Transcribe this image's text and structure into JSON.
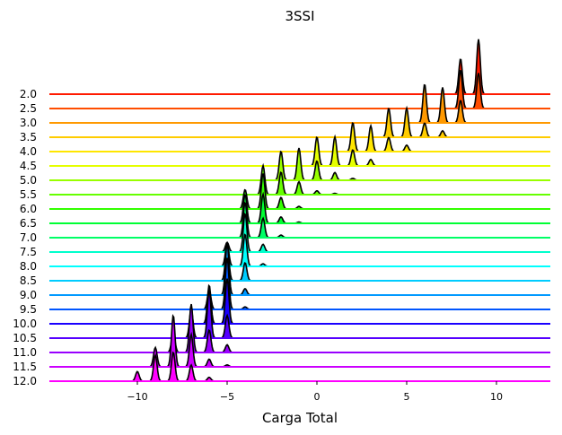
{
  "chart_data": {
    "type": "area",
    "subtype": "ridgeline",
    "title": "3SSI",
    "xlabel": "Carga Total",
    "ylabel": "",
    "xlim": [
      -14.9,
      13
    ],
    "x_ticks": [
      -10,
      -5,
      0,
      5,
      10
    ],
    "x_tick_labels": [
      "−10",
      "−5",
      "0",
      "5",
      "10"
    ],
    "grid": false,
    "legend": "none",
    "series": [
      {
        "label": "2.0",
        "color": "#ff1a00",
        "peaks": [
          [
            8,
            0.55
          ],
          [
            9,
            0.85
          ]
        ]
      },
      {
        "label": "2.5",
        "color": "#ff4d00",
        "peaks": [
          [
            8,
            0.6
          ],
          [
            9,
            0.55
          ]
        ]
      },
      {
        "label": "3.0",
        "color": "#ff9900",
        "peaks": [
          [
            6,
            0.6
          ],
          [
            7,
            0.55
          ],
          [
            8,
            0.35
          ]
        ]
      },
      {
        "label": "3.5",
        "color": "#ffcc00",
        "peaks": [
          [
            4,
            0.45
          ],
          [
            5,
            0.45
          ],
          [
            6,
            0.22
          ],
          [
            7,
            0.1
          ]
        ]
      },
      {
        "label": "4.0",
        "color": "#ffe600",
        "peaks": [
          [
            2,
            0.45
          ],
          [
            3,
            0.4
          ],
          [
            4,
            0.22
          ],
          [
            5,
            0.1
          ]
        ]
      },
      {
        "label": "4.5",
        "color": "#e5ff00",
        "peaks": [
          [
            0,
            0.45
          ],
          [
            1,
            0.45
          ],
          [
            2,
            0.25
          ],
          [
            3,
            0.1
          ]
        ]
      },
      {
        "label": "5.0",
        "color": "#99ff00",
        "peaks": [
          [
            -2,
            0.45
          ],
          [
            -1,
            0.5
          ],
          [
            0,
            0.3
          ],
          [
            1,
            0.12
          ],
          [
            2,
            0.03
          ]
        ]
      },
      {
        "label": "5.5",
        "color": "#66ff00",
        "peaks": [
          [
            -3,
            0.45
          ],
          [
            -2,
            0.35
          ],
          [
            -1,
            0.2
          ],
          [
            0,
            0.06
          ],
          [
            1,
            0.02
          ]
        ]
      },
      {
        "label": "6.0",
        "color": "#33ff00",
        "peaks": [
          [
            -4,
            0.3
          ],
          [
            -3,
            0.55
          ],
          [
            -2,
            0.18
          ],
          [
            -1,
            0.04
          ]
        ]
      },
      {
        "label": "6.5",
        "color": "#00ff33",
        "peaks": [
          [
            -4,
            0.45
          ],
          [
            -3,
            0.45
          ],
          [
            -2,
            0.1
          ],
          [
            -1,
            0.02
          ]
        ]
      },
      {
        "label": "7.0",
        "color": "#00ff66",
        "peaks": [
          [
            -4,
            0.55
          ],
          [
            -3,
            0.3
          ],
          [
            -2,
            0.04
          ]
        ]
      },
      {
        "label": "7.5",
        "color": "#00ffcc",
        "peaks": [
          [
            -5,
            0.15
          ],
          [
            -4,
            0.6
          ],
          [
            -3,
            0.12
          ]
        ]
      },
      {
        "label": "8.0",
        "color": "#00ffff",
        "peaks": [
          [
            -5,
            0.35
          ],
          [
            -4,
            0.5
          ],
          [
            -3,
            0.04
          ]
        ]
      },
      {
        "label": "8.5",
        "color": "#00ccff",
        "peaks": [
          [
            -5,
            0.55
          ],
          [
            -4,
            0.28
          ]
        ]
      },
      {
        "label": "9.0",
        "color": "#0099ff",
        "peaks": [
          [
            -5,
            0.8
          ],
          [
            -4,
            0.1
          ]
        ]
      },
      {
        "label": "9.5",
        "color": "#0055ff",
        "peaks": [
          [
            -6,
            0.3
          ],
          [
            -5,
            0.8
          ],
          [
            -4,
            0.04
          ]
        ]
      },
      {
        "label": "10.0",
        "color": "#1a00ff",
        "peaks": [
          [
            -6,
            0.6
          ],
          [
            -5,
            0.7
          ]
        ]
      },
      {
        "label": "10.5",
        "color": "#5500ff",
        "peaks": [
          [
            -7,
            0.45
          ],
          [
            -6,
            0.75
          ],
          [
            -5,
            0.35
          ]
        ]
      },
      {
        "label": "11.0",
        "color": "#9900ff",
        "peaks": [
          [
            -8,
            0.3
          ],
          [
            -7,
            0.75
          ],
          [
            -6,
            0.35
          ],
          [
            -5,
            0.12
          ]
        ]
      },
      {
        "label": "11.5",
        "color": "#cc00ff",
        "peaks": [
          [
            -9,
            0.3
          ],
          [
            -8,
            0.8
          ],
          [
            -7,
            0.5
          ],
          [
            -6,
            0.12
          ],
          [
            -5,
            0.03
          ]
        ]
      },
      {
        "label": "12.0",
        "color": "#ff00ff",
        "peaks": [
          [
            -10,
            0.15
          ],
          [
            -9,
            0.4
          ],
          [
            -8,
            0.45
          ],
          [
            -7,
            0.25
          ],
          [
            -6,
            0.06
          ]
        ]
      }
    ]
  }
}
